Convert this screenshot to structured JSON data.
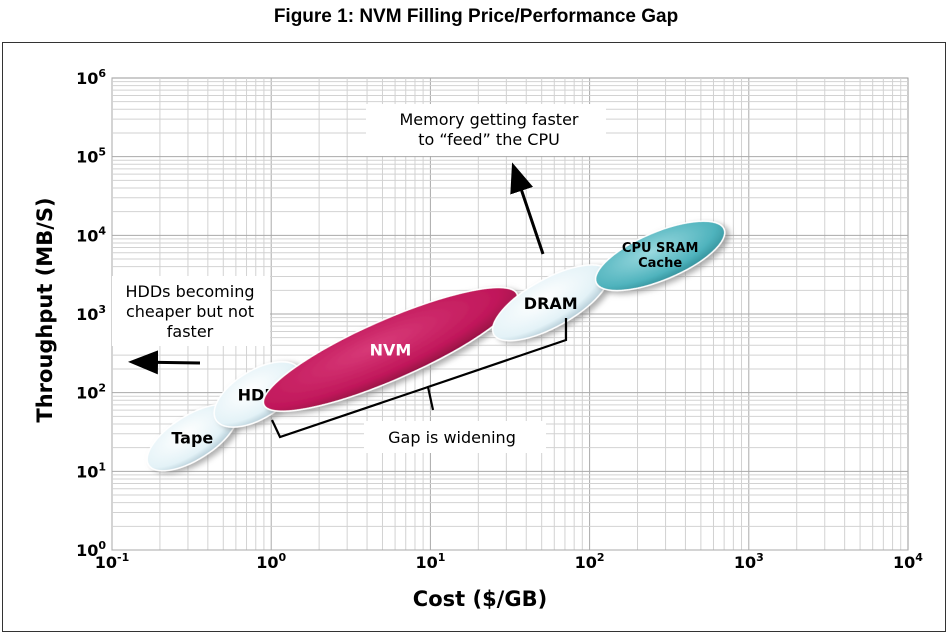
{
  "title": "Figure 1: NVM Filling Price/Performance Gap",
  "chart_data": {
    "type": "scatter",
    "xlabel": "Cost ($/GB)",
    "ylabel": "Throughput (MB/S)",
    "xscale": "log",
    "yscale": "log",
    "xlim": [
      0.1,
      10000
    ],
    "ylim": [
      1,
      1000000
    ],
    "grid": true,
    "xticks": [
      {
        "base": "10",
        "exp": "-1"
      },
      {
        "base": "10",
        "exp": "0"
      },
      {
        "base": "10",
        "exp": "1"
      },
      {
        "base": "10",
        "exp": "2"
      },
      {
        "base": "10",
        "exp": "3"
      },
      {
        "base": "10",
        "exp": "4"
      }
    ],
    "yticks": [
      {
        "base": "10",
        "exp": "0"
      },
      {
        "base": "10",
        "exp": "1"
      },
      {
        "base": "10",
        "exp": "2"
      },
      {
        "base": "10",
        "exp": "3"
      },
      {
        "base": "10",
        "exp": "4"
      },
      {
        "base": "10",
        "exp": "5"
      },
      {
        "base": "10",
        "exp": "6"
      }
    ],
    "regions": [
      {
        "label": "Tape",
        "x_range": [
          0.17,
          0.6
        ],
        "y_range": [
          12,
          60
        ],
        "color": "#e6f4f8"
      },
      {
        "label": "HDD",
        "x_range": [
          0.45,
          1.5
        ],
        "y_range": [
          45,
          200
        ],
        "color": "#e6f4f8"
      },
      {
        "label": "NVM",
        "x_range": [
          0.9,
          35
        ],
        "y_range": [
          70,
          1800
        ],
        "color": "#c0175a"
      },
      {
        "label": "DRAM",
        "x_range": [
          25,
          130
        ],
        "y_range": [
          550,
          3500
        ],
        "color": "#e6f4f8"
      },
      {
        "label": "CPU SRAM\nCache",
        "x_range": [
          110,
          700
        ],
        "y_range": [
          2500,
          12000
        ],
        "color": "#5bbcc6"
      }
    ],
    "annotations": [
      {
        "text": "Memory getting  faster\nto “feed” the CPU"
      },
      {
        "text": "HDDs becoming\ncheaper but not\nfaster"
      },
      {
        "text": "Gap is widening"
      }
    ]
  }
}
